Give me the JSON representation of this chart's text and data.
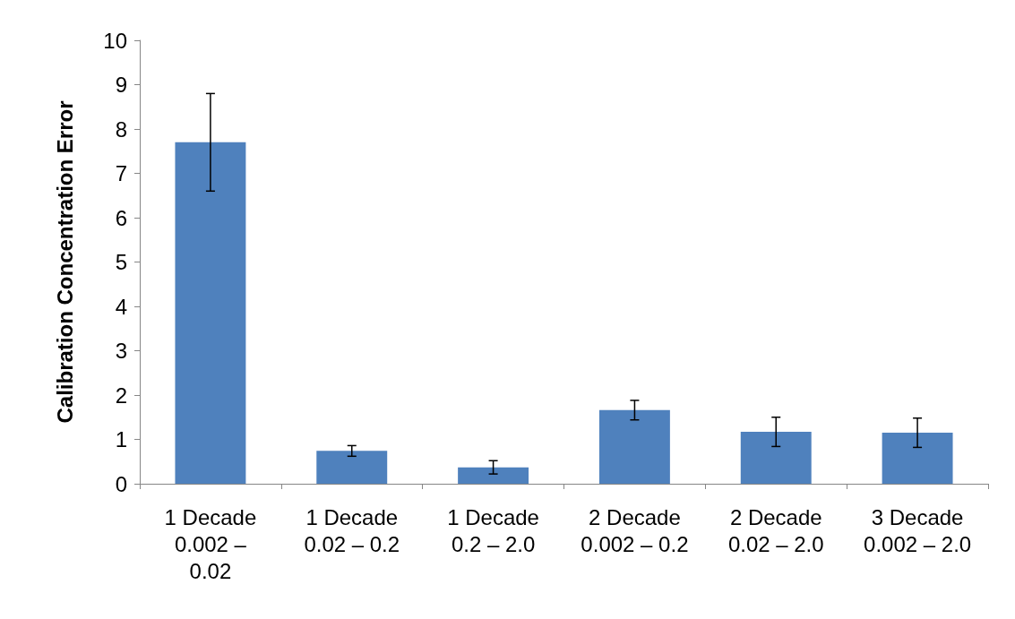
{
  "chart_data": {
    "type": "bar",
    "ylabel": "Calibration Concentration Error",
    "categories": [
      "1 Decade\n0.002 –\n0.02",
      "1 Decade\n0.02 – 0.2",
      "1 Decade\n0.2 – 2.0",
      "2 Decade\n0.002 – 0.2",
      "2 Decade\n0.02 – 2.0",
      "3 Decade\n0.002 – 2.0"
    ],
    "values": [
      7.7,
      0.74,
      0.37,
      1.66,
      1.17,
      1.15
    ],
    "errors": [
      1.1,
      0.12,
      0.15,
      0.22,
      0.33,
      0.33
    ],
    "color": "#4f81bd",
    "ylim": [
      0,
      10
    ],
    "yticks": [
      0,
      1,
      2,
      3,
      4,
      5,
      6,
      7,
      8,
      9,
      10
    ],
    "grid": false
  }
}
